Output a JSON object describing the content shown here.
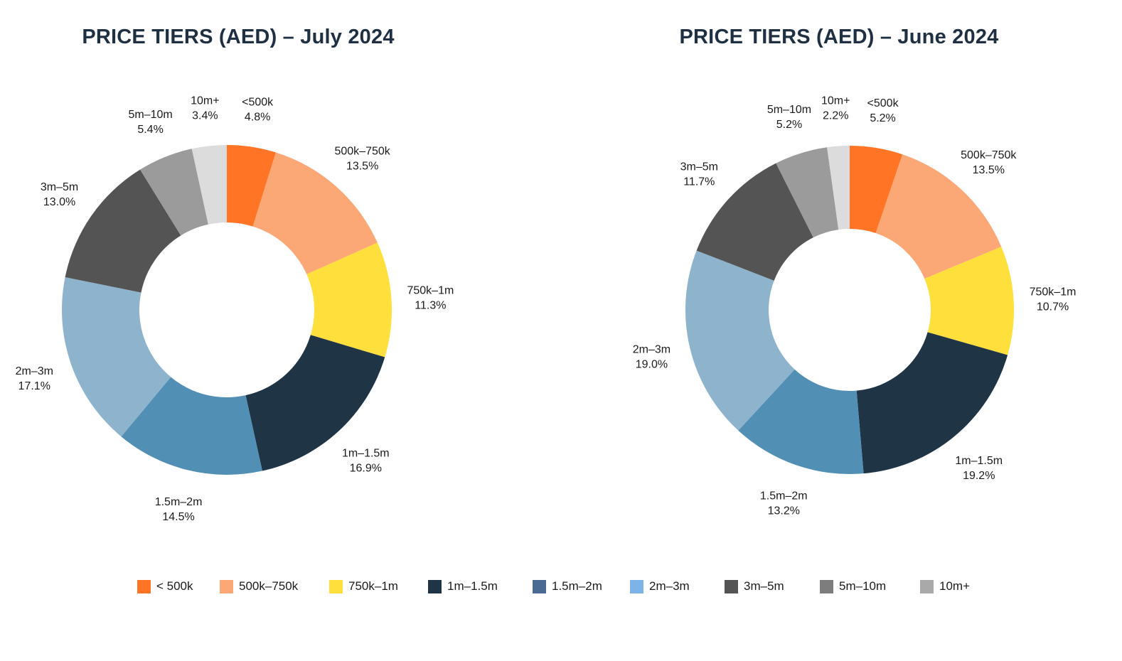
{
  "chart_data": [
    {
      "type": "pie",
      "donut": true,
      "title": "PRICE TIERS (AED) – July 2024",
      "slices": [
        {
          "label": "<500k",
          "value": 4.8,
          "value_label": "4.8%",
          "color": "#ff7425"
        },
        {
          "label": "500k–750k",
          "value": 13.5,
          "value_label": "13.5%",
          "color": "#fca876"
        },
        {
          "label": "750k–1m",
          "value": 11.3,
          "value_label": "11.3%",
          "color": "#ffdf3c"
        },
        {
          "label": "1m–1.5m",
          "value": 16.9,
          "value_label": "16.9%",
          "color": "#1f3445"
        },
        {
          "label": "1.5m–2m",
          "value": 14.5,
          "value_label": "14.5%",
          "color": "#528fb5"
        },
        {
          "label": "2m–3m",
          "value": 17.1,
          "value_label": "17.1%",
          "color": "#8db3cd"
        },
        {
          "label": "3m–5m",
          "value": 13.0,
          "value_label": "13.0%",
          "color": "#545454"
        },
        {
          "label": "5m–10m",
          "value": 5.4,
          "value_label": "5.4%",
          "color": "#9b9b9b"
        },
        {
          "label": "10m+",
          "value": 3.4,
          "value_label": "3.4%",
          "color": "#dcdcdc"
        }
      ]
    },
    {
      "type": "pie",
      "donut": true,
      "title": "PRICE TIERS (AED) – June 2024",
      "slices": [
        {
          "label": "<500k",
          "value": 5.2,
          "value_label": "5.2%",
          "color": "#ff7425"
        },
        {
          "label": "500k–750k",
          "value": 13.5,
          "value_label": "13.5%",
          "color": "#fca876"
        },
        {
          "label": "750k–1m",
          "value": 10.7,
          "value_label": "10.7%",
          "color": "#ffdf3c"
        },
        {
          "label": "1m–1.5m",
          "value": 19.2,
          "value_label": "19.2%",
          "color": "#1f3445"
        },
        {
          "label": "1.5m–2m",
          "value": 13.2,
          "value_label": "13.2%",
          "color": "#528fb5"
        },
        {
          "label": "2m–3m",
          "value": 19.0,
          "value_label": "19.0%",
          "color": "#8db3cd"
        },
        {
          "label": "3m–5m",
          "value": 11.7,
          "value_label": "11.7%",
          "color": "#545454"
        },
        {
          "label": "5m–10m",
          "value": 5.2,
          "value_label": "5.2%",
          "color": "#9b9b9b"
        },
        {
          "label": "10m+",
          "value": 2.2,
          "value_label": "2.2%",
          "color": "#dcdcdc"
        }
      ]
    }
  ],
  "legend": {
    "placement": "bottom-center",
    "items": [
      {
        "label": "< 500k",
        "color": "#ff7425"
      },
      {
        "label": "500k–750k",
        "color": "#fca876"
      },
      {
        "label": "750k–1m",
        "color": "#ffdf3c"
      },
      {
        "label": "1m–1.5m",
        "color": "#1f3445"
      },
      {
        "label": "1.5m–2m",
        "color": "#4a6a94"
      },
      {
        "label": "2m–3m",
        "color": "#7eb3ea"
      },
      {
        "label": "3m–5m",
        "color": "#545454"
      },
      {
        "label": "5m–10m",
        "color": "#7d7d7d"
      },
      {
        "label": "10m+",
        "color": "#a9a9a9"
      }
    ]
  }
}
